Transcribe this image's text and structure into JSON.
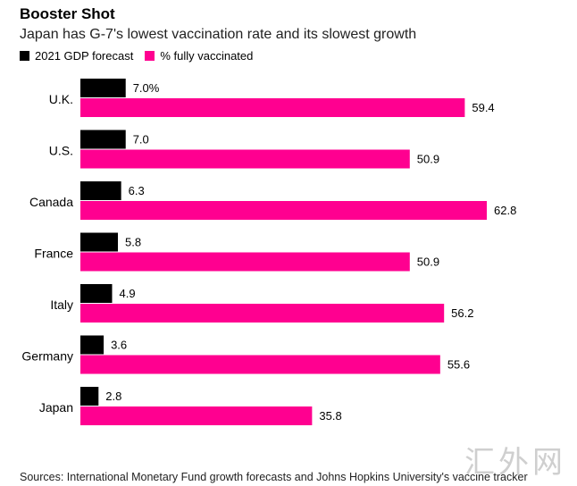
{
  "header": {
    "title": "Booster Shot",
    "subtitle": "Japan has G-7's lowest vaccination rate and its slowest growth"
  },
  "legend": [
    {
      "label": "2021 GDP forecast",
      "color": "#000000"
    },
    {
      "label": "% fully vaccinated",
      "color": "#ff0090"
    }
  ],
  "chart_data": {
    "type": "bar",
    "orientation": "horizontal",
    "title": "Booster Shot",
    "subtitle": "Japan has G-7's lowest vaccination rate and its slowest growth",
    "categories": [
      "U.K.",
      "U.S.",
      "Canada",
      "France",
      "Italy",
      "Germany",
      "Japan"
    ],
    "series": [
      {
        "name": "2021 GDP forecast",
        "color": "#000000",
        "values": [
          7.0,
          7.0,
          6.3,
          5.8,
          4.9,
          3.6,
          2.8
        ],
        "labels": [
          "7.0%",
          "7.0",
          "6.3",
          "5.8",
          "4.9",
          "3.6",
          "2.8"
        ]
      },
      {
        "name": "% fully vaccinated",
        "color": "#ff0090",
        "values": [
          59.4,
          50.9,
          62.8,
          50.9,
          56.2,
          55.6,
          35.8
        ],
        "labels": [
          "59.4",
          "50.9",
          "62.8",
          "50.9",
          "56.2",
          "55.6",
          "35.8"
        ]
      }
    ],
    "xlim": [
      0,
      62.8
    ],
    "xlabel": "",
    "ylabel": "",
    "grid": false
  },
  "footer": {
    "source": "Sources: International Monetary Fund growth forecasts and Johns Hopkins University's vaccine tracker",
    "watermark": "汇外网"
  }
}
